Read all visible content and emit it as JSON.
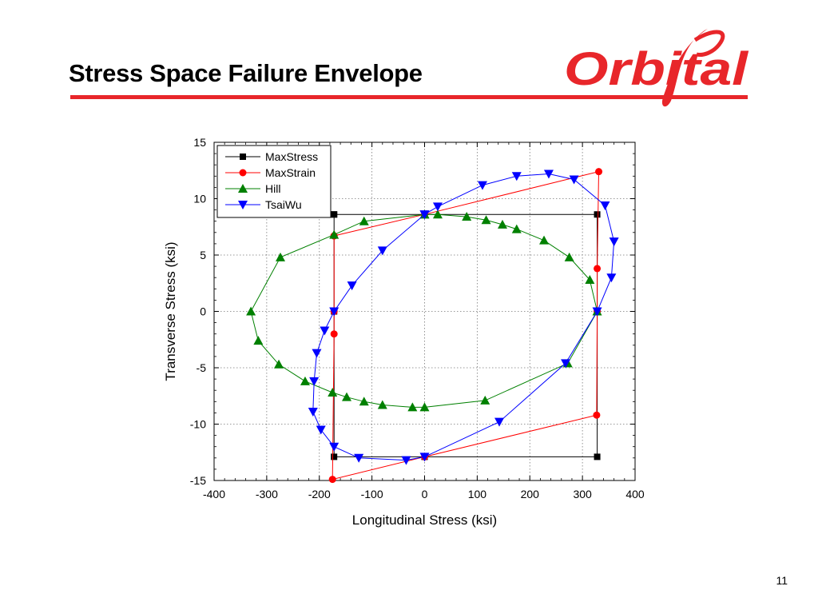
{
  "slide": {
    "title": "Stress Space Failure Envelope",
    "logo_text": "Orbital",
    "page_number": "11",
    "accent_color": "#e8262a"
  },
  "chart_data": {
    "type": "line",
    "title": "",
    "xlabel": "Longitudinal Stress (ksi)",
    "ylabel": "Transverse Stress (ksi)",
    "xlim": [
      -400,
      400
    ],
    "ylim": [
      -15,
      15
    ],
    "xticks": [
      -400,
      -300,
      -200,
      -100,
      0,
      100,
      200,
      300,
      400
    ],
    "yticks": [
      -15,
      -10,
      -5,
      0,
      5,
      10,
      15
    ],
    "grid": true,
    "legend_position": "top-left",
    "series": [
      {
        "name": "MaxStress",
        "color": "#000000",
        "marker": "square",
        "points": [
          [
            -172,
            8.6
          ],
          [
            0,
            8.6
          ],
          [
            328,
            8.6
          ],
          [
            328,
            0
          ],
          [
            328,
            -12.9
          ],
          [
            0,
            -12.9
          ],
          [
            -172,
            -12.9
          ],
          [
            -172,
            0
          ],
          [
            -172,
            8.6
          ]
        ]
      },
      {
        "name": "MaxStrain",
        "color": "#ff0000",
        "marker": "circle",
        "points": [
          [
            -172,
            6.7
          ],
          [
            0,
            8.6
          ],
          [
            331,
            12.4
          ],
          [
            328,
            3.8
          ],
          [
            328,
            0
          ],
          [
            327,
            -9.2
          ],
          [
            0,
            -12.9
          ],
          [
            -175,
            -14.9
          ],
          [
            -172,
            -2.0
          ],
          [
            -172,
            0
          ],
          [
            -172,
            6.7
          ]
        ]
      },
      {
        "name": "Hill",
        "color": "#008000",
        "marker": "triangle-up",
        "points": [
          [
            0,
            8.6
          ],
          [
            25,
            8.6
          ],
          [
            80,
            8.4
          ],
          [
            117,
            8.1
          ],
          [
            148,
            7.7
          ],
          [
            175,
            7.3
          ],
          [
            227,
            6.3
          ],
          [
            275,
            4.8
          ],
          [
            314,
            2.8
          ],
          [
            328,
            0
          ],
          [
            272,
            -4.6
          ],
          [
            115,
            -7.9
          ],
          [
            0,
            -8.5
          ],
          [
            -23,
            -8.5
          ],
          [
            -80,
            -8.3
          ],
          [
            -115,
            -8.0
          ],
          [
            -148,
            -7.6
          ],
          [
            -175,
            -7.2
          ],
          [
            -227,
            -6.2
          ],
          [
            -277,
            -4.7
          ],
          [
            -316,
            -2.6
          ],
          [
            -330,
            0
          ],
          [
            -274,
            4.8
          ],
          [
            -172,
            6.8
          ],
          [
            -115,
            8.0
          ],
          [
            0,
            8.6
          ]
        ]
      },
      {
        "name": "TsaiWu",
        "color": "#0000ff",
        "marker": "triangle-down",
        "points": [
          [
            0,
            8.6
          ],
          [
            25,
            9.3
          ],
          [
            110,
            11.2
          ],
          [
            175,
            12.0
          ],
          [
            236,
            12.2
          ],
          [
            284,
            11.7
          ],
          [
            343,
            9.4
          ],
          [
            360,
            6.2
          ],
          [
            355,
            3.0
          ],
          [
            328,
            0
          ],
          [
            268,
            -4.6
          ],
          [
            142,
            -9.8
          ],
          [
            0,
            -12.9
          ],
          [
            -35,
            -13.2
          ],
          [
            -125,
            -13.0
          ],
          [
            -172,
            -12.0
          ],
          [
            -197,
            -10.5
          ],
          [
            -212,
            -8.9
          ],
          [
            -210,
            -6.2
          ],
          [
            -205,
            -3.7
          ],
          [
            -190,
            -1.7
          ],
          [
            -172,
            0
          ],
          [
            -138,
            2.3
          ],
          [
            -80,
            5.4
          ],
          [
            0,
            8.6
          ]
        ]
      }
    ]
  }
}
